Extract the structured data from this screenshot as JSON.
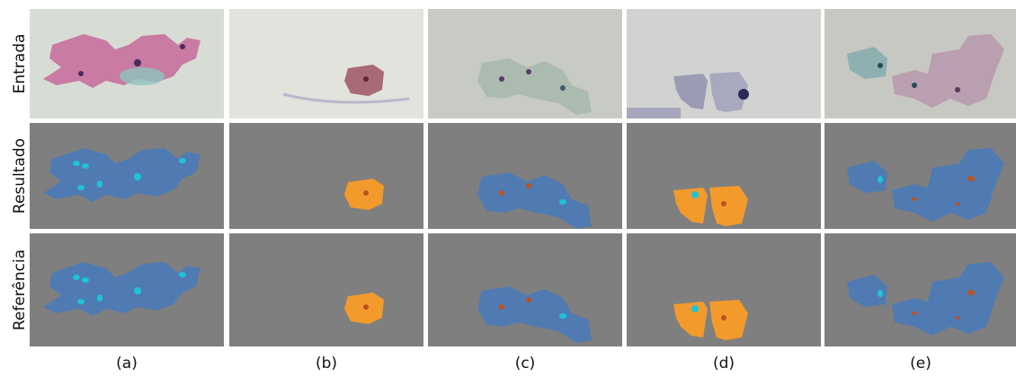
{
  "figure": {
    "row_labels": [
      "Entrada",
      "Resultado",
      "Referência"
    ],
    "column_labels": [
      "(a)",
      "(b)",
      "(c)",
      "(d)",
      "(e)"
    ]
  }
}
